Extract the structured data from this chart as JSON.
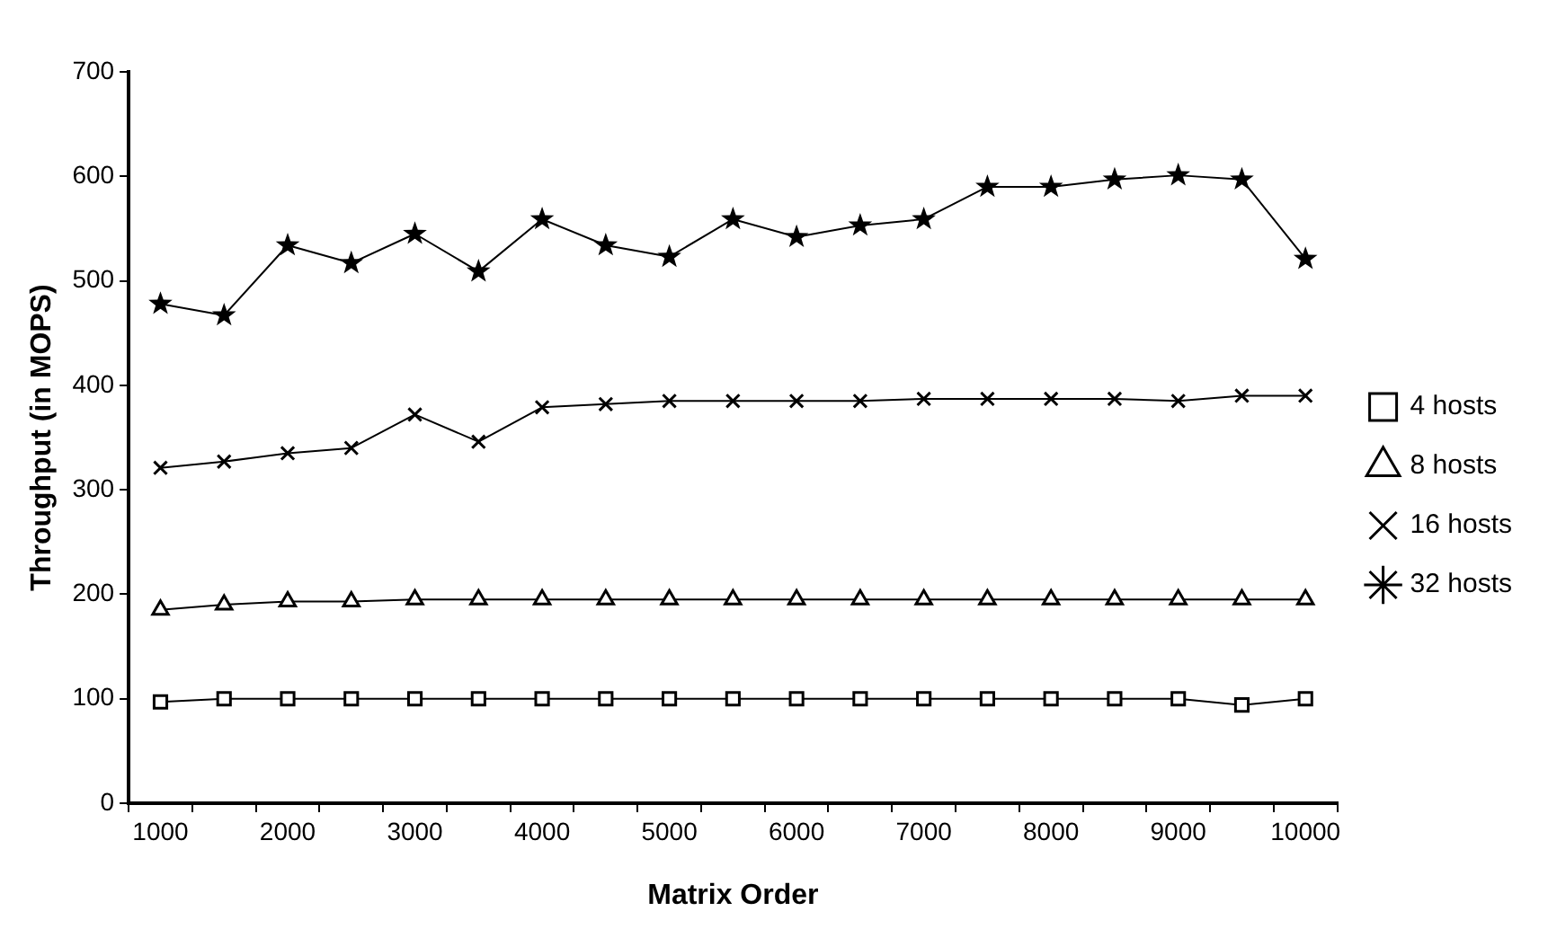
{
  "chart_data": {
    "type": "line",
    "xlabel": "Matrix Order",
    "ylabel": "Throughput (in MOPS)",
    "categories": [
      "1000",
      null,
      "2000",
      null,
      "3000",
      null,
      "4000",
      null,
      "5000",
      null,
      "6000",
      null,
      "7000",
      null,
      "8000",
      null,
      "9000",
      null,
      "10000"
    ],
    "ylim": [
      0,
      700
    ],
    "yticks": [
      0,
      100,
      200,
      300,
      400,
      500,
      600,
      700
    ],
    "grid": false,
    "legend": "right",
    "line_style": "solid",
    "series": [
      {
        "name": "4 hosts",
        "color": "#000000",
        "marker": "square",
        "values": [
          97,
          100,
          100,
          100,
          100,
          100,
          100,
          100,
          100,
          100,
          100,
          100,
          100,
          100,
          100,
          100,
          100,
          94,
          100
        ]
      },
      {
        "name": "8 hosts",
        "color": "#000000",
        "marker": "triangle",
        "values": [
          185,
          190,
          193,
          193,
          195,
          195,
          195,
          195,
          195,
          195,
          195,
          195,
          195,
          195,
          195,
          195,
          195,
          195,
          195
        ]
      },
      {
        "name": "16 hosts",
        "color": "#000000",
        "marker": "cross",
        "values": [
          321,
          327,
          335,
          340,
          372,
          346,
          379,
          382,
          385,
          385,
          385,
          385,
          387,
          387,
          387,
          387,
          385,
          390,
          390
        ]
      },
      {
        "name": "32 hosts",
        "color": "#000000",
        "marker": "star",
        "values": [
          478,
          467,
          534,
          517,
          545,
          509,
          559,
          534,
          523,
          559,
          542,
          553,
          559,
          590,
          590,
          597,
          601,
          597,
          521
        ]
      }
    ]
  }
}
